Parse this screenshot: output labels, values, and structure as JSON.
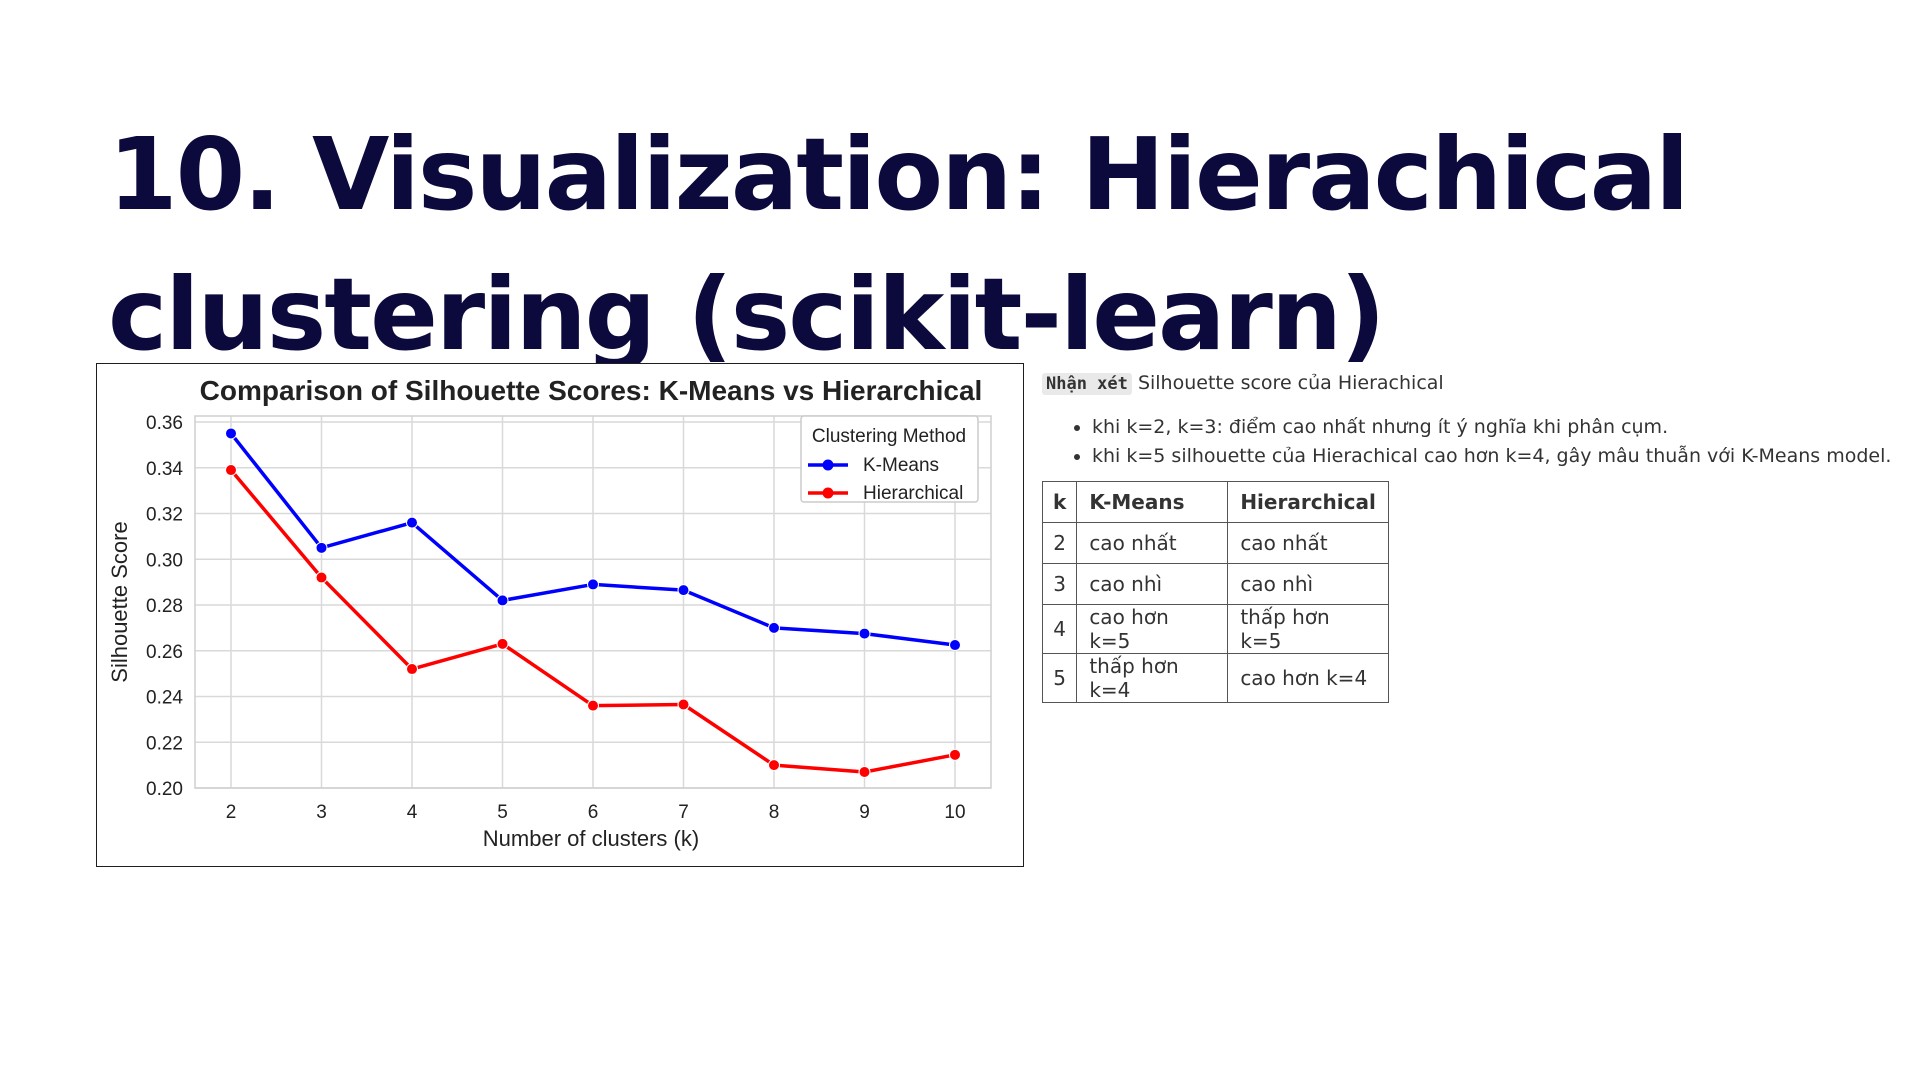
{
  "slide": {
    "title": "10. Visualization: Hierachical clustering (scikit-learn)"
  },
  "chart_data": {
    "type": "line",
    "title": "Comparison of Silhouette Scores: K-Means vs Hierarchical",
    "xlabel": "Number of clusters (k)",
    "ylabel": "Silhouette Score",
    "x": [
      2,
      3,
      4,
      5,
      6,
      7,
      8,
      9,
      10
    ],
    "ylim": [
      0.2,
      0.36
    ],
    "yticks": [
      "0.20",
      "0.22",
      "0.24",
      "0.26",
      "0.28",
      "0.30",
      "0.32",
      "0.34",
      "0.36"
    ],
    "xticks": [
      "2",
      "3",
      "4",
      "5",
      "6",
      "7",
      "8",
      "9",
      "10"
    ],
    "grid": true,
    "legend_title": "Clustering Method",
    "legend_position": "top-right",
    "series": [
      {
        "name": "K-Means",
        "color": "#0000ff",
        "values": [
          0.355,
          0.305,
          0.316,
          0.282,
          0.289,
          0.2865,
          0.27,
          0.2675,
          0.2625
        ]
      },
      {
        "name": "Hierarchical",
        "color": "#ff0000",
        "values": [
          0.339,
          0.292,
          0.252,
          0.263,
          0.236,
          0.2365,
          0.21,
          0.207,
          0.2145
        ]
      }
    ]
  },
  "notes": {
    "tag": "Nhận xét",
    "intro": "Silhouette score của Hierachical",
    "bullets": [
      "khi k=2, k=3: điểm cao nhất nhưng ít ý nghĩa khi phân cụm.",
      "khi k=5 silhouette của Hierachical cao hơn k=4, gây mâu thuẫn với K-Means model."
    ]
  },
  "table": {
    "headers": [
      "k",
      "K-Means",
      "Hierarchical"
    ],
    "rows": [
      [
        "2",
        "cao nhất",
        "cao nhất"
      ],
      [
        "3",
        "cao nhì",
        "cao nhì"
      ],
      [
        "4",
        "cao hơn k=5",
        "thấp hơn k=5"
      ],
      [
        "5",
        "thấp hơn k=4",
        "cao hơn k=4"
      ]
    ]
  }
}
